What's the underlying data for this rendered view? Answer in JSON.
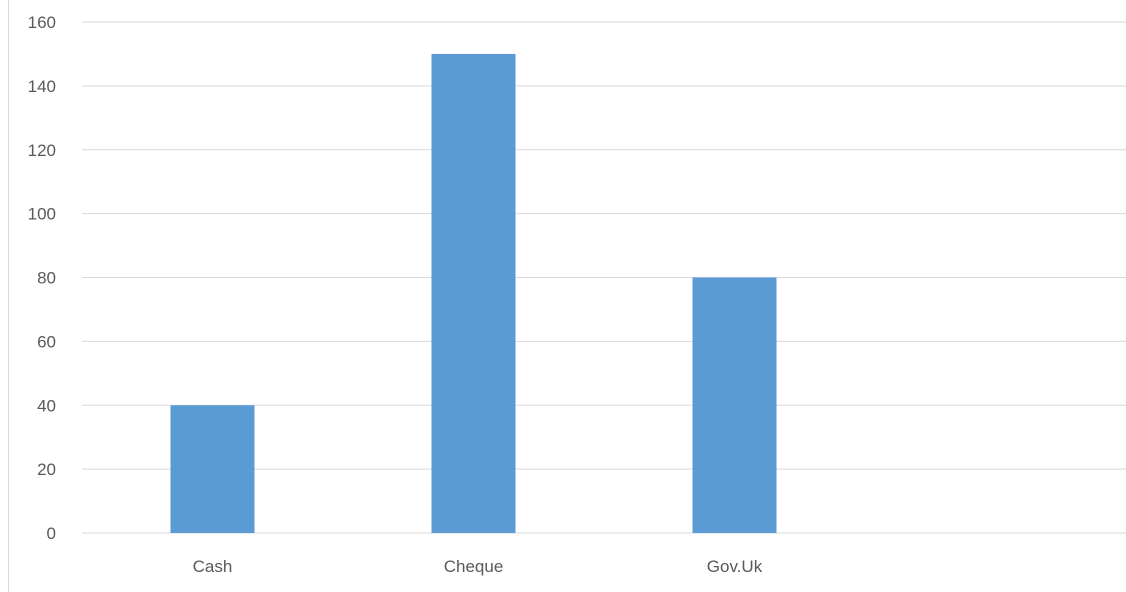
{
  "chart_data": {
    "type": "bar",
    "categories": [
      "Cash",
      "Cheque",
      "Gov.Uk"
    ],
    "values": [
      40,
      150,
      80
    ],
    "title": "",
    "xlabel": "",
    "ylabel": "",
    "ylim": [
      0,
      160
    ],
    "yticks": [
      0,
      20,
      40,
      60,
      80,
      100,
      120,
      140,
      160
    ],
    "grid": true,
    "legend": "none",
    "bar_color": "#5B9BD5",
    "gridline_color": "#D9D9D9",
    "tick_label_color": "#595959"
  }
}
